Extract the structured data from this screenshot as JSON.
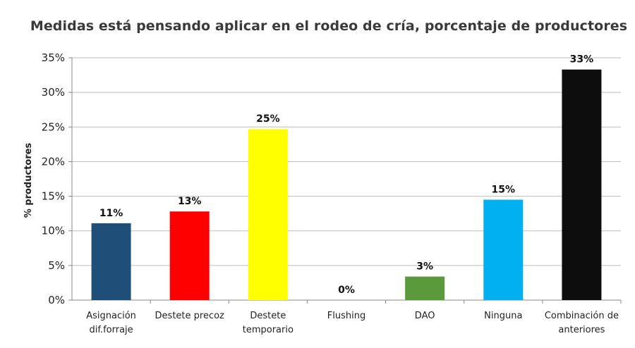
{
  "chart_data": {
    "type": "bar",
    "title": "Medidas está pensando aplicar en el rodeo de cría, porcentaje de productores",
    "xlabel": "",
    "ylabel": "% productores",
    "ylim": [
      0,
      35
    ],
    "yticks": [
      "0%",
      "5%",
      "10%",
      "15%",
      "20%",
      "25%",
      "30%",
      "35%"
    ],
    "grid": true,
    "categories": [
      [
        "Asignación",
        "dif.forraje"
      ],
      [
        "Destete precoz"
      ],
      [
        "Destete",
        "temporario"
      ],
      [
        "Flushing"
      ],
      [
        "DAO"
      ],
      [
        "Ninguna"
      ],
      [
        "Combinación de",
        "anteriores"
      ]
    ],
    "values": [
      11.1,
      12.8,
      24.7,
      0,
      3.4,
      14.5,
      33.3
    ],
    "data_labels": [
      "11%",
      "13%",
      "25%",
      "0%",
      "3%",
      "15%",
      "33%"
    ],
    "colors": [
      "#1f4e79",
      "#ff0000",
      "#ffff00",
      "#92d050",
      "#5b9a3c",
      "#00b0f0",
      "#0d0d0d"
    ]
  }
}
